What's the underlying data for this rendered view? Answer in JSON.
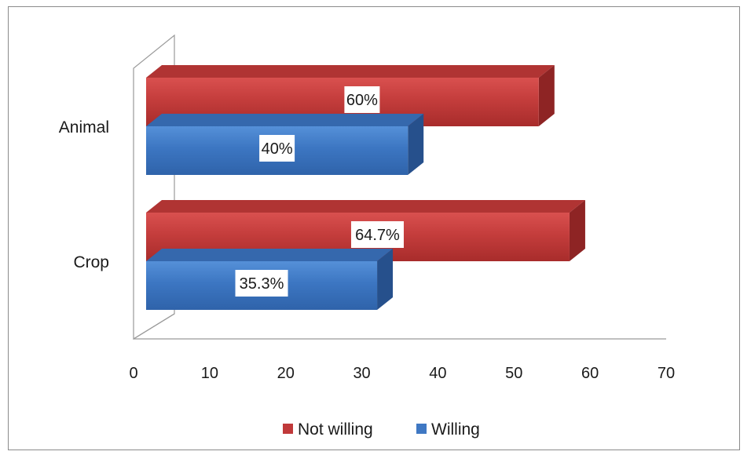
{
  "chart_data": {
    "type": "bar",
    "orientation": "horizontal",
    "style": "3d",
    "categories": [
      "Animal",
      "Crop"
    ],
    "series": [
      {
        "name": "Not willing",
        "values": [
          60,
          64.7
        ],
        "labels": [
          "60%",
          "64.7%"
        ],
        "color": "#c0393a"
      },
      {
        "name": "Willing",
        "values": [
          40,
          35.3
        ],
        "labels": [
          "40%",
          "35.3%"
        ],
        "color": "#3f78c3"
      }
    ],
    "xlim": [
      0,
      70
    ],
    "xticks": [
      0,
      10,
      20,
      30,
      40,
      50,
      60,
      70
    ],
    "grid": false,
    "legend_position": "bottom"
  }
}
